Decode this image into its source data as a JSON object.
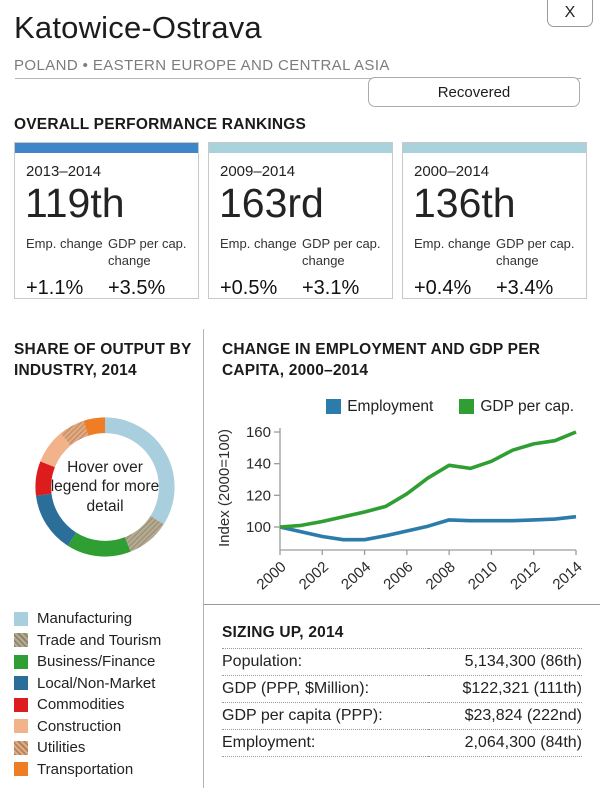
{
  "header": {
    "close_label": "X",
    "title": "Katowice-Ostrava",
    "subtitle": "POLAND • EASTERN EUROPE AND CENTRAL ASIA",
    "status_button": "Recovered"
  },
  "rankings": {
    "heading": "OVERALL PERFORMANCE RANKINGS",
    "emp_label": "Emp. change",
    "gdp_label": "GDP per cap. change",
    "cards": [
      {
        "period": "2013–2014",
        "rank": "119th",
        "emp_change": "+1.1%",
        "gdp_change": "+3.5%",
        "bar_color": "#3e86c8"
      },
      {
        "period": "2009–2014",
        "rank": "163rd",
        "emp_change": "+0.5%",
        "gdp_change": "+3.1%",
        "bar_color": "#a9d2dc"
      },
      {
        "period": "2000–2014",
        "rank": "136th",
        "emp_change": "+0.4%",
        "gdp_change": "+3.4%",
        "bar_color": "#a9d2dc"
      }
    ]
  },
  "chart_data": [
    {
      "type": "pie",
      "title": "SHARE OF OUTPUT BY INDUSTRY, 2014",
      "center_text": "Hover over legend for more detail",
      "legend_position": "bottom-left",
      "segments": [
        {
          "label": "Manufacturing",
          "value": 34,
          "color": "#a9cedd",
          "hatch": false
        },
        {
          "label": "Trade and Tourism",
          "value": 10,
          "color": "#b3aa90",
          "hatch": true
        },
        {
          "label": "Business/Finance",
          "value": 15,
          "color": "#2f9e33",
          "hatch": false
        },
        {
          "label": "Local/Non-Market",
          "value": 14,
          "color": "#2b6e99",
          "hatch": false
        },
        {
          "label": "Commodities",
          "value": 8,
          "color": "#dd1d1d",
          "hatch": false
        },
        {
          "label": "Construction",
          "value": 8,
          "color": "#f2b28a",
          "hatch": false
        },
        {
          "label": "Utilities",
          "value": 6,
          "color": "#e3a87d",
          "hatch": true
        },
        {
          "label": "Transportation",
          "value": 5,
          "color": "#ef7d23",
          "hatch": false
        }
      ]
    },
    {
      "type": "line",
      "title": "CHANGE IN EMPLOYMENT AND GDP PER CAPITA, 2000–2014",
      "ylabel": "Index (2000=100)",
      "ylim": [
        88,
        166
      ],
      "grid": false,
      "legend_position": "top",
      "x": [
        2000,
        2001,
        2002,
        2003,
        2004,
        2005,
        2006,
        2007,
        2008,
        2009,
        2010,
        2011,
        2012,
        2013,
        2014
      ],
      "xticks": [
        2000,
        2002,
        2004,
        2006,
        2008,
        2010,
        2012,
        2014
      ],
      "yticks": [
        100,
        120,
        140,
        160
      ],
      "series": [
        {
          "name": "Employment",
          "color": "#2b7cab",
          "values": [
            100,
            97,
            94,
            92,
            92,
            94.5,
            97.5,
            100.5,
            104.5,
            104,
            104,
            104,
            104.5,
            105,
            106.5
          ]
        },
        {
          "name": "GDP per cap.",
          "color": "#2f9e33",
          "values": [
            100,
            101,
            103.5,
            106.5,
            109.5,
            113,
            121,
            131,
            139,
            137,
            141.5,
            148.5,
            152.5,
            154.5,
            160
          ]
        }
      ]
    }
  ],
  "sizing": {
    "heading": "SIZING UP, 2014",
    "rows": [
      {
        "label": "Population:",
        "value": "5,134,300 (86th)"
      },
      {
        "label": "GDP (PPP, $Million):",
        "value": "$122,321 (111th)"
      },
      {
        "label": "GDP per capita (PPP):",
        "value": "$23,824 (222nd)"
      },
      {
        "label": "Employment:",
        "value": "2,064,300 (84th)"
      }
    ]
  }
}
